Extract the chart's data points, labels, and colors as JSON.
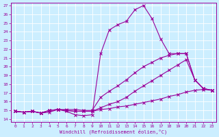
{
  "xlabel": "Windchill (Refroidissement éolien,°C)",
  "bg_color": "#cceeff",
  "line_color": "#990099",
  "xlim": [
    -0.5,
    23.5
  ],
  "ylim": [
    13.7,
    27.3
  ],
  "xticks": [
    0,
    1,
    2,
    3,
    4,
    5,
    6,
    7,
    8,
    9,
    10,
    11,
    12,
    13,
    14,
    15,
    16,
    17,
    18,
    19,
    20,
    21,
    22,
    23
  ],
  "yticks": [
    14,
    15,
    16,
    17,
    18,
    19,
    20,
    21,
    22,
    23,
    24,
    25,
    26,
    27
  ],
  "series": [
    {
      "x": [
        0,
        1,
        2,
        3,
        4,
        5,
        6,
        7,
        8,
        9,
        10,
        11,
        12,
        13,
        14,
        15,
        16,
        17,
        18,
        19,
        20,
        21,
        22,
        23
      ],
      "y": [
        14.9,
        14.8,
        14.9,
        14.7,
        14.8,
        15.1,
        14.9,
        14.5,
        14.4,
        14.5,
        21.5,
        24.2,
        24.8,
        25.2,
        26.5,
        27.0,
        25.5,
        23.2,
        21.5,
        21.5,
        21.5,
        18.5,
        17.5,
        17.3
      ]
    },
    {
      "x": [
        0,
        1,
        2,
        3,
        4,
        5,
        6,
        7,
        8,
        9,
        10,
        11,
        12,
        13,
        14,
        15,
        16,
        17,
        18,
        19,
        20,
        21,
        22,
        23
      ],
      "y": [
        14.9,
        14.8,
        14.9,
        14.7,
        15.0,
        15.1,
        15.1,
        15.1,
        15.0,
        15.0,
        16.5,
        17.2,
        17.8,
        18.5,
        19.3,
        20.0,
        20.5,
        21.0,
        21.3,
        21.5,
        21.5,
        18.5,
        17.5,
        17.3
      ]
    },
    {
      "x": [
        0,
        1,
        2,
        3,
        4,
        5,
        6,
        7,
        8,
        9,
        10,
        11,
        12,
        13,
        14,
        15,
        16,
        17,
        18,
        19,
        20,
        21,
        22,
        23
      ],
      "y": [
        14.9,
        14.8,
        14.9,
        14.7,
        15.0,
        15.1,
        15.0,
        14.9,
        14.9,
        14.9,
        15.3,
        15.7,
        16.0,
        16.5,
        17.2,
        17.8,
        18.4,
        19.0,
        19.6,
        20.2,
        20.8,
        18.5,
        17.5,
        17.3
      ]
    },
    {
      "x": [
        0,
        1,
        2,
        3,
        4,
        5,
        6,
        7,
        8,
        9,
        10,
        11,
        12,
        13,
        14,
        15,
        16,
        17,
        18,
        19,
        20,
        21,
        22,
        23
      ],
      "y": [
        14.9,
        14.8,
        14.9,
        14.7,
        15.0,
        15.1,
        15.0,
        14.9,
        14.9,
        14.9,
        15.1,
        15.2,
        15.4,
        15.5,
        15.7,
        15.9,
        16.1,
        16.3,
        16.6,
        16.8,
        17.1,
        17.3,
        17.4,
        17.3
      ]
    }
  ]
}
